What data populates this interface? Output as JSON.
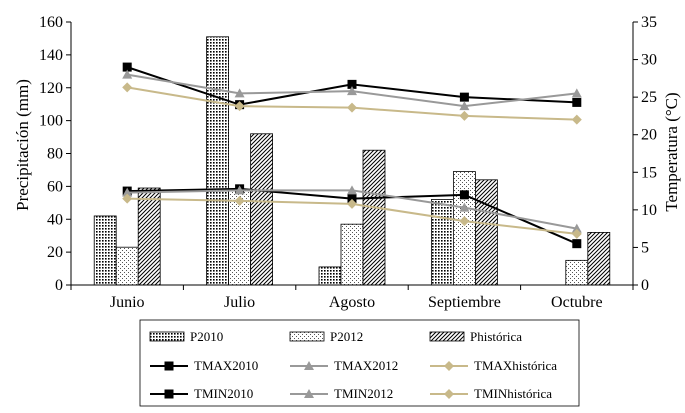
{
  "chart_data": {
    "type": "bar",
    "categories": [
      "Junio",
      "Julio",
      "Agosto",
      "Septiembre",
      "Octubre"
    ],
    "ylabel_left": "Precipitación (mm)",
    "ylabel_right": "Temperatura (°C)",
    "ylim_left": [
      0,
      160
    ],
    "ylim_right": [
      0,
      35
    ],
    "yticks_left": [
      "0",
      "20",
      "40",
      "60",
      "80",
      "100",
      "120",
      "140",
      "160"
    ],
    "yticks_right": [
      "0",
      "5",
      "10",
      "15",
      "20",
      "25",
      "30",
      "35"
    ],
    "bar_series": [
      {
        "name": "P2010",
        "pattern": "dots-dense",
        "values": [
          42,
          151,
          11,
          52,
          0
        ]
      },
      {
        "name": "P2012",
        "pattern": "dots-sparse",
        "values": [
          23,
          58,
          37,
          69,
          15
        ]
      },
      {
        "name": "Phistórica",
        "pattern": "hatch",
        "values": [
          59,
          92,
          82,
          64,
          32
        ]
      }
    ],
    "line_series": [
      {
        "name": "TMAX2010",
        "color": "#000000",
        "marker": "square",
        "values": [
          29.0,
          24.0,
          26.7,
          25.0,
          24.3
        ]
      },
      {
        "name": "TMAX2012",
        "color": "#999999",
        "marker": "triangle",
        "values": [
          28.0,
          25.5,
          25.8,
          23.8,
          25.5
        ]
      },
      {
        "name": "TMAXhistórica",
        "color": "#c8b98a",
        "marker": "diamond",
        "values": [
          26.3,
          23.8,
          23.6,
          22.5,
          22.0
        ]
      },
      {
        "name": "TMIN2010",
        "color": "#000000",
        "marker": "square",
        "values": [
          12.5,
          12.8,
          11.5,
          12.0,
          5.5
        ]
      },
      {
        "name": "TMIN2012",
        "color": "#999999",
        "marker": "triangle",
        "values": [
          12.3,
          12.6,
          12.6,
          10.3,
          7.5
        ]
      },
      {
        "name": "TMINhistórica",
        "color": "#c8b98a",
        "marker": "diamond",
        "values": [
          11.5,
          11.2,
          10.8,
          8.5,
          6.8
        ]
      }
    ],
    "legend_position": "bottom"
  }
}
